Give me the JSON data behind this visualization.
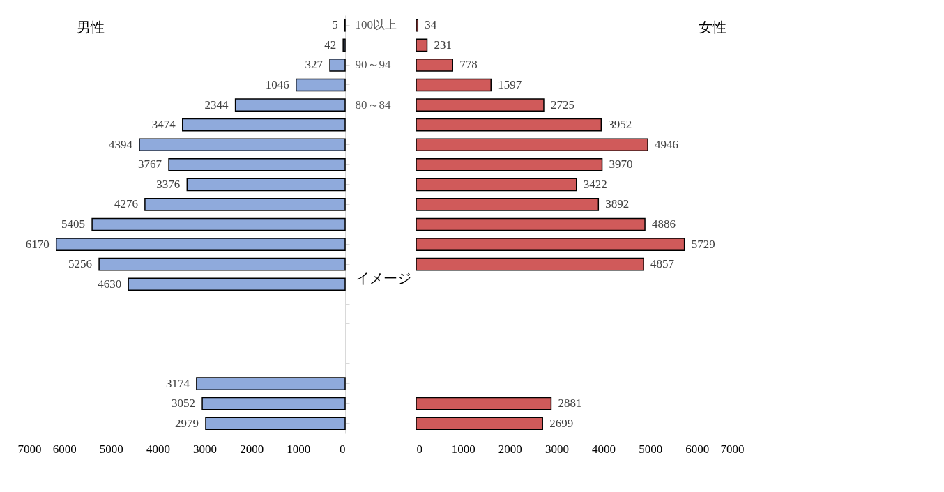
{
  "chart_data": [
    {
      "type": "bar",
      "orientation": "horizontal",
      "categories": [
        "100以上",
        null,
        "90～94",
        null,
        "80～84",
        null,
        null,
        null,
        null,
        null,
        null,
        null,
        null,
        null,
        null,
        null,
        null,
        null,
        null,
        null,
        null
      ],
      "values": [
        5,
        42,
        327,
        1046,
        2344,
        3474,
        4394,
        3767,
        3376,
        4276,
        5405,
        6170,
        5256,
        4630,
        null,
        null,
        null,
        null,
        3174,
        3052,
        2979
      ],
      "color": "#8faadc",
      "xlim": [
        7000,
        0
      ],
      "xticks": [
        7000,
        6000,
        5000,
        4000,
        3000,
        2000,
        1000,
        0
      ],
      "data_labels": true,
      "annotations": [
        "男性",
        "イメージ"
      ]
    },
    {
      "type": "bar",
      "orientation": "horizontal",
      "values": [
        34,
        231,
        778,
        1597,
        2725,
        3952,
        4946,
        3970,
        3422,
        3892,
        4886,
        5729,
        4857,
        null,
        null,
        null,
        null,
        null,
        null,
        2881,
        2699
      ],
      "color": "#d05a5a",
      "xlim": [
        0,
        7000
      ],
      "xticks": [
        0,
        1000,
        2000,
        3000,
        4000,
        5000,
        6000,
        7000
      ],
      "data_labels": true,
      "tick_labels": "x",
      "annotations": [
        "女性"
      ]
    }
  ]
}
